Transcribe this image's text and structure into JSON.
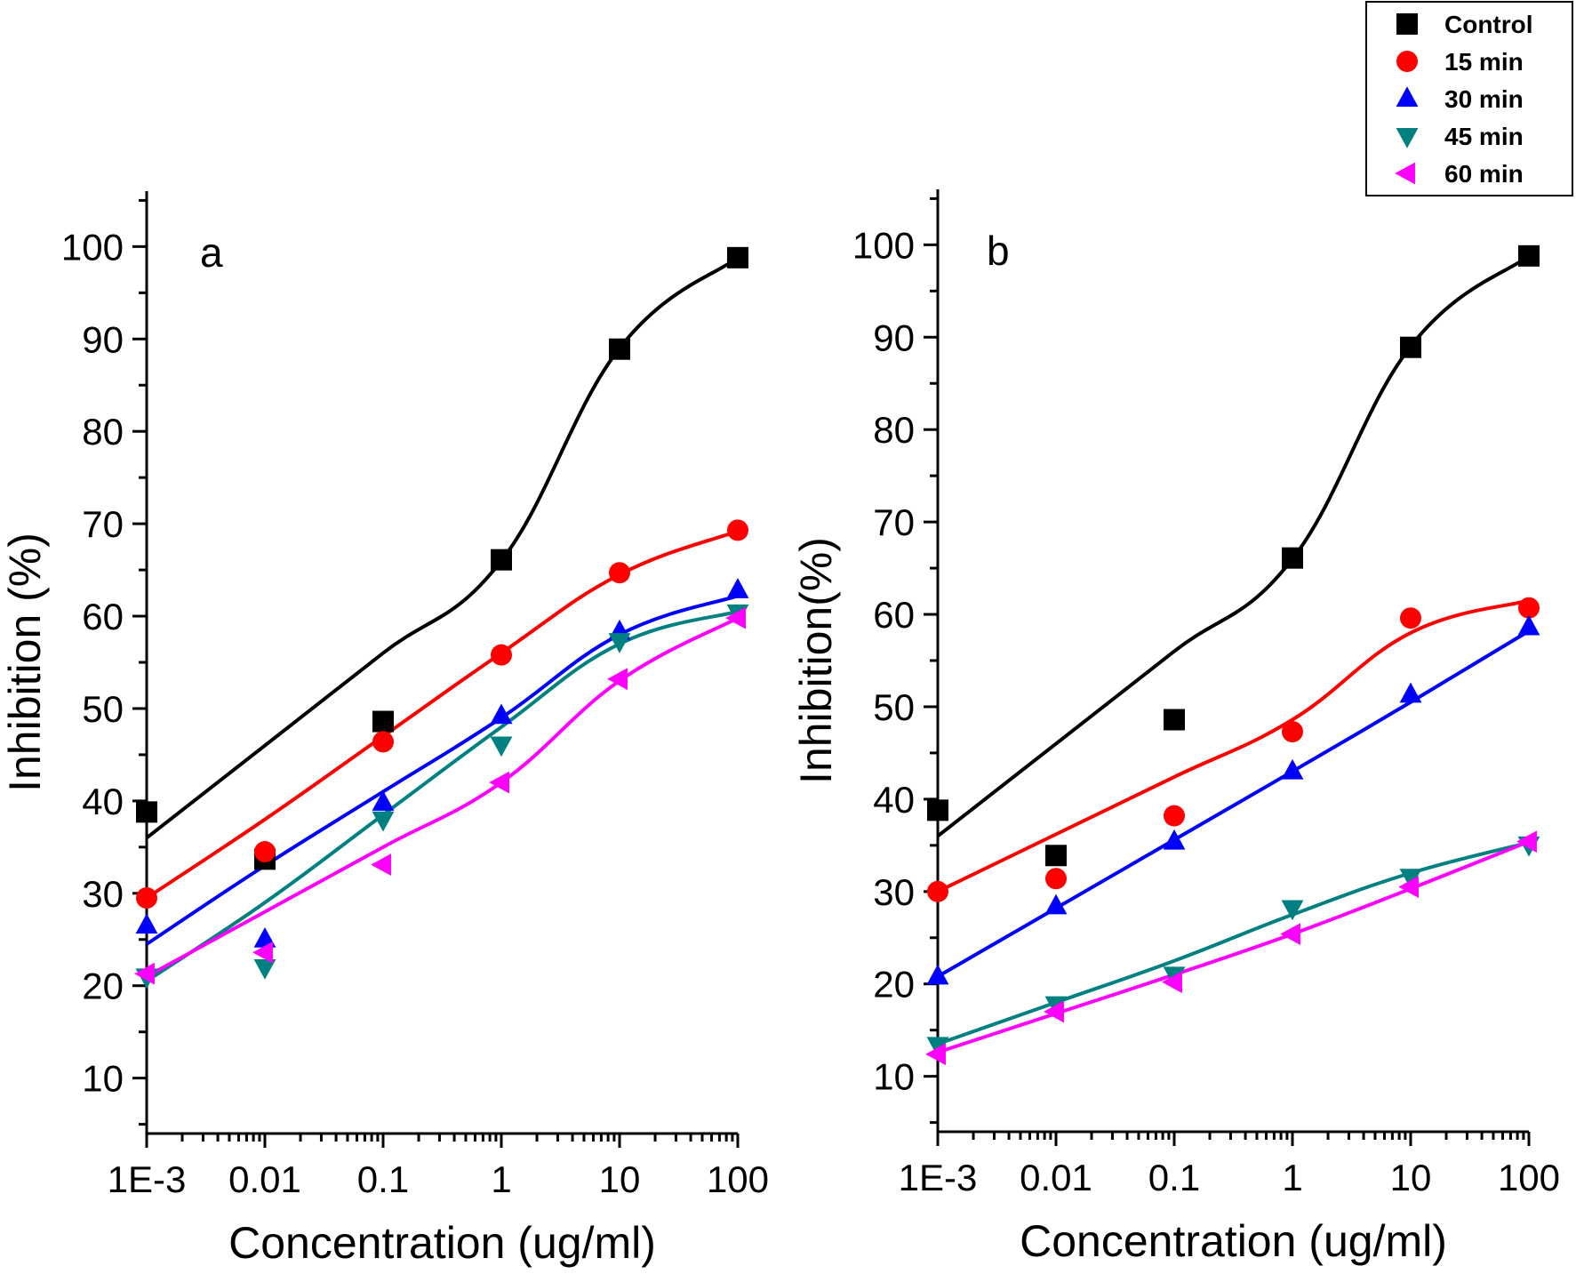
{
  "chart_data": [
    {
      "type": "scatter",
      "panel_label": "a",
      "xlabel": "Concentration (ug/ml)",
      "ylabel": "Inhibition (%)",
      "xscale": "log",
      "xlim": [
        0.001,
        100
      ],
      "ylim": [
        4,
        106
      ],
      "xticks": [
        0.001,
        0.01,
        0.1,
        1,
        10,
        100
      ],
      "xtick_labels": [
        "1E-3",
        "0.01",
        "0.1",
        "1",
        "10",
        "100"
      ],
      "yticks": [
        10,
        20,
        30,
        40,
        50,
        60,
        70,
        80,
        90,
        100
      ],
      "ytick_labels": [
        "10",
        "20",
        "30",
        "40",
        "50",
        "60",
        "70",
        "80",
        "90",
        "100"
      ],
      "x": [
        0.001,
        0.01,
        0.1,
        1,
        10,
        100
      ],
      "series": [
        {
          "name": "Control",
          "color": "#000000",
          "marker": "square",
          "values": [
            38.8,
            33.7,
            48.6,
            66.1,
            88.9,
            98.8
          ],
          "fit": [
            36.0,
            46.0,
            56.0,
            66.0,
            89.0,
            98.8
          ]
        },
        {
          "name": "15 min",
          "color": "#ff0000",
          "marker": "circle",
          "values": [
            29.5,
            34.5,
            46.4,
            55.8,
            64.7,
            69.3
          ],
          "fit": [
            29.5,
            38.0,
            47.0,
            56.0,
            64.5,
            69.2
          ]
        },
        {
          "name": "30 min",
          "color": "#0000ff",
          "marker": "triangle-up",
          "values": [
            26.5,
            25.0,
            39.8,
            49.2,
            58.3,
            62.8
          ],
          "fit": [
            24.5,
            33.0,
            41.0,
            49.0,
            58.0,
            62.2
          ]
        },
        {
          "name": "45 min",
          "color": "#008080",
          "marker": "triangle-down",
          "values": [
            21.0,
            22.0,
            38.0,
            46.1,
            57.3,
            60.4
          ],
          "fit": [
            20.5,
            29.0,
            38.5,
            48.0,
            57.0,
            60.5
          ]
        },
        {
          "name": "60 min",
          "color": "#ff00ff",
          "marker": "triangle-left",
          "values": [
            21.3,
            23.6,
            33.1,
            42.0,
            53.2,
            59.8
          ],
          "fit": [
            21.0,
            28.0,
            35.0,
            42.0,
            53.0,
            59.8
          ]
        }
      ]
    },
    {
      "type": "scatter",
      "panel_label": "b",
      "xlabel": "Concentration (ug/ml)",
      "ylabel": "Inhibition(%)",
      "xscale": "log",
      "xlim": [
        0.001,
        100
      ],
      "ylim": [
        4,
        106
      ],
      "xticks": [
        0.001,
        0.01,
        0.1,
        1,
        10,
        100
      ],
      "xtick_labels": [
        "1E-3",
        "0.01",
        "0.1",
        "1",
        "10",
        "100"
      ],
      "yticks": [
        10,
        20,
        30,
        40,
        50,
        60,
        70,
        80,
        90,
        100
      ],
      "ytick_labels": [
        "10",
        "20",
        "30",
        "40",
        "50",
        "60",
        "70",
        "80",
        "90",
        "100"
      ],
      "x": [
        0.001,
        0.01,
        0.1,
        1,
        10,
        100
      ],
      "series": [
        {
          "name": "Control",
          "color": "#000000",
          "marker": "square",
          "values": [
            38.8,
            33.9,
            48.6,
            66.1,
            88.9,
            98.8
          ],
          "fit": [
            36.0,
            46.0,
            56.0,
            66.0,
            89.0,
            98.8
          ]
        },
        {
          "name": "15 min",
          "color": "#ff0000",
          "marker": "circle",
          "values": [
            30.0,
            31.4,
            38.2,
            47.3,
            59.6,
            60.7
          ],
          "fit": [
            30.0,
            36.2,
            42.4,
            48.6,
            58.0,
            61.5
          ]
        },
        {
          "name": "30 min",
          "color": "#0000ff",
          "marker": "triangle-up",
          "values": [
            20.8,
            28.4,
            35.4,
            43.0,
            51.3,
            58.6
          ],
          "fit": [
            20.8,
            28.2,
            35.6,
            43.0,
            50.5,
            58.2
          ]
        },
        {
          "name": "45 min",
          "color": "#008080",
          "marker": "triangle-down",
          "values": [
            13.4,
            17.8,
            21.0,
            28.2,
            31.6,
            35.1
          ],
          "fit": [
            13.5,
            18.0,
            22.5,
            27.5,
            32.0,
            35.3
          ]
        },
        {
          "name": "60 min",
          "color": "#ff00ff",
          "marker": "triangle-left",
          "values": [
            12.4,
            17.0,
            20.2,
            25.4,
            30.5,
            35.4
          ],
          "fit": [
            12.6,
            16.8,
            21.0,
            25.4,
            30.3,
            35.4
          ]
        }
      ]
    }
  ],
  "legend": {
    "position": "top-right",
    "entries": [
      "Control",
      "15 min",
      "30 min",
      "45 min",
      "60 min"
    ]
  }
}
